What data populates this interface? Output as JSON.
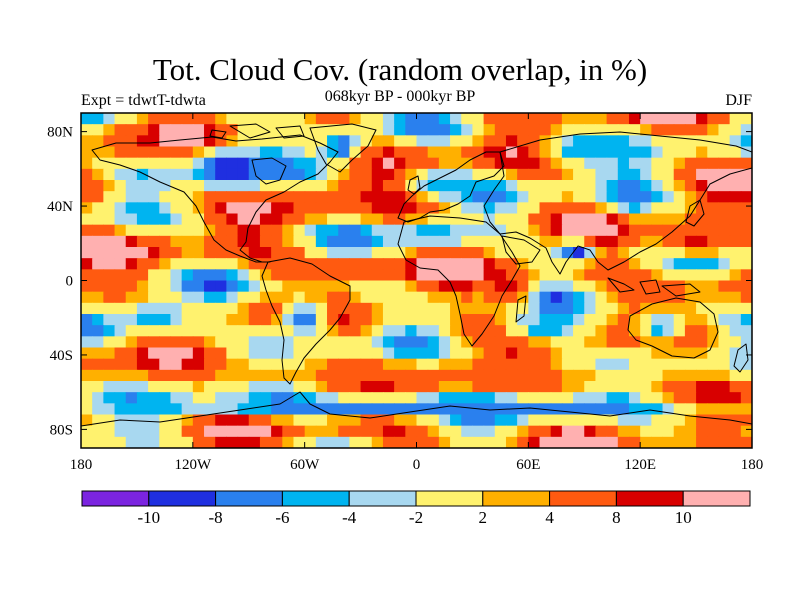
{
  "title": "Tot. Cloud Cov. (random overlap, in %)",
  "subtitle": "068kyr BP - 000kyr BP",
  "experiment": "Expt = tdwtT-tdwta",
  "season": "DJF",
  "map": {
    "lon_range": [
      -180,
      180
    ],
    "lat_range": [
      -90,
      90
    ],
    "projection": "cylindrical-equidistant",
    "x_ticks": [
      {
        "lon": -180,
        "label": "180"
      },
      {
        "lon": -120,
        "label": "120W"
      },
      {
        "lon": -60,
        "label": "60W"
      },
      {
        "lon": 0,
        "label": "0"
      },
      {
        "lon": 60,
        "label": "60E"
      },
      {
        "lon": 120,
        "label": "120E"
      },
      {
        "lon": 180,
        "label": "180"
      }
    ],
    "y_ticks": [
      {
        "lat": 80,
        "label": "80N"
      },
      {
        "lat": 40,
        "label": "40N"
      },
      {
        "lat": 0,
        "label": "0"
      },
      {
        "lat": -40,
        "label": "40S"
      },
      {
        "lat": -80,
        "label": "80S"
      }
    ]
  },
  "colorbar": {
    "colors": [
      "#7b24e0",
      "#1f2fe0",
      "#2a80ee",
      "#00b4f0",
      "#a8d8f0",
      "#fff26e",
      "#ffb000",
      "#ff5a10",
      "#d80000",
      "#ffb0b0"
    ],
    "labels": [
      {
        "boundary": 1,
        "label": "-10"
      },
      {
        "boundary": 2,
        "label": "-8"
      },
      {
        "boundary": 3,
        "label": "-6"
      },
      {
        "boundary": 4,
        "label": "-4"
      },
      {
        "boundary": 5,
        "label": "-2"
      },
      {
        "boundary": 6,
        "label": "2"
      },
      {
        "boundary": 7,
        "label": "4"
      },
      {
        "boundary": 8,
        "label": "8"
      },
      {
        "boundary": 9,
        "label": "10"
      }
    ]
  },
  "chart_data": {
    "type": "heatmap",
    "title": "Tot. Cloud Cov. (random overlap, in %)",
    "subtitle": "068kyr BP - 000kyr BP",
    "variable": "total cloud cover difference (%)",
    "season": "DJF",
    "levels": [
      -10,
      -8,
      -6,
      -4,
      -2,
      2,
      4,
      8,
      10
    ],
    "x_domain": [
      -180,
      180
    ],
    "y_domain": [
      -90,
      90
    ],
    "features": [
      {
        "name": "north-america-decrease",
        "lon": -100,
        "lat": 60,
        "rlon": 22,
        "rlat": 12,
        "value": -10
      },
      {
        "name": "alaska-increase",
        "lon": -150,
        "lat": 75,
        "rlon": 15,
        "rlat": 8,
        "value": 8
      },
      {
        "name": "greenland-decrease",
        "lon": -40,
        "lat": 72,
        "rlon": 12,
        "rlat": 8,
        "value": -8
      },
      {
        "name": "atlantic-40n-increase",
        "lon": -45,
        "lat": 42,
        "rlon": 18,
        "rlat": 8,
        "value": 8
      },
      {
        "name": "europe-decrease",
        "lon": 15,
        "lat": 52,
        "rlon": 20,
        "rlat": 8,
        "value": -6
      },
      {
        "name": "siberia-decrease",
        "lon": 90,
        "lat": 70,
        "rlon": 25,
        "rlat": 10,
        "value": -6
      },
      {
        "name": "east-asia-decrease",
        "lon": 115,
        "lat": 45,
        "rlon": 15,
        "rlat": 10,
        "value": -8
      },
      {
        "name": "sahara-decrease",
        "lon": 10,
        "lat": 25,
        "rlon": 20,
        "rlat": 8,
        "value": -6
      },
      {
        "name": "india-decrease",
        "lon": 85,
        "lat": 15,
        "rlon": 10,
        "rlat": 6,
        "value": -10
      },
      {
        "name": "pacific-20n-increase",
        "lon": 150,
        "lat": 20,
        "rlon": 20,
        "rlat": 8,
        "value": 10
      },
      {
        "name": "east-africa-increase",
        "lon": 50,
        "lat": -5,
        "rlon": 12,
        "rlat": 10,
        "value": 10
      },
      {
        "name": "west-atlantic-eq-increase",
        "lon": -40,
        "lat": 5,
        "rlon": 30,
        "rlat": 6,
        "value": 8
      },
      {
        "name": "south-america-decrease",
        "lon": -60,
        "lat": -20,
        "rlon": 15,
        "rlat": 12,
        "value": -8
      },
      {
        "name": "south-pacific-decrease",
        "lon": -140,
        "lat": -20,
        "rlon": 25,
        "rlat": 10,
        "value": -6
      },
      {
        "name": "indian-ocean-decrease",
        "lon": 70,
        "lat": -25,
        "rlon": 25,
        "rlat": 8,
        "value": -6
      },
      {
        "name": "australia-decrease",
        "lon": 130,
        "lat": -25,
        "rlon": 15,
        "rlat": 10,
        "value": -6
      },
      {
        "name": "southern-ocean-increase",
        "lon": 0,
        "lat": -50,
        "rlon": 180,
        "rlat": 6,
        "value": 4
      },
      {
        "name": "antarctic-ring-decrease",
        "lon": 0,
        "lat": -68,
        "rlon": 180,
        "rlat": 6,
        "value": -8
      }
    ]
  }
}
